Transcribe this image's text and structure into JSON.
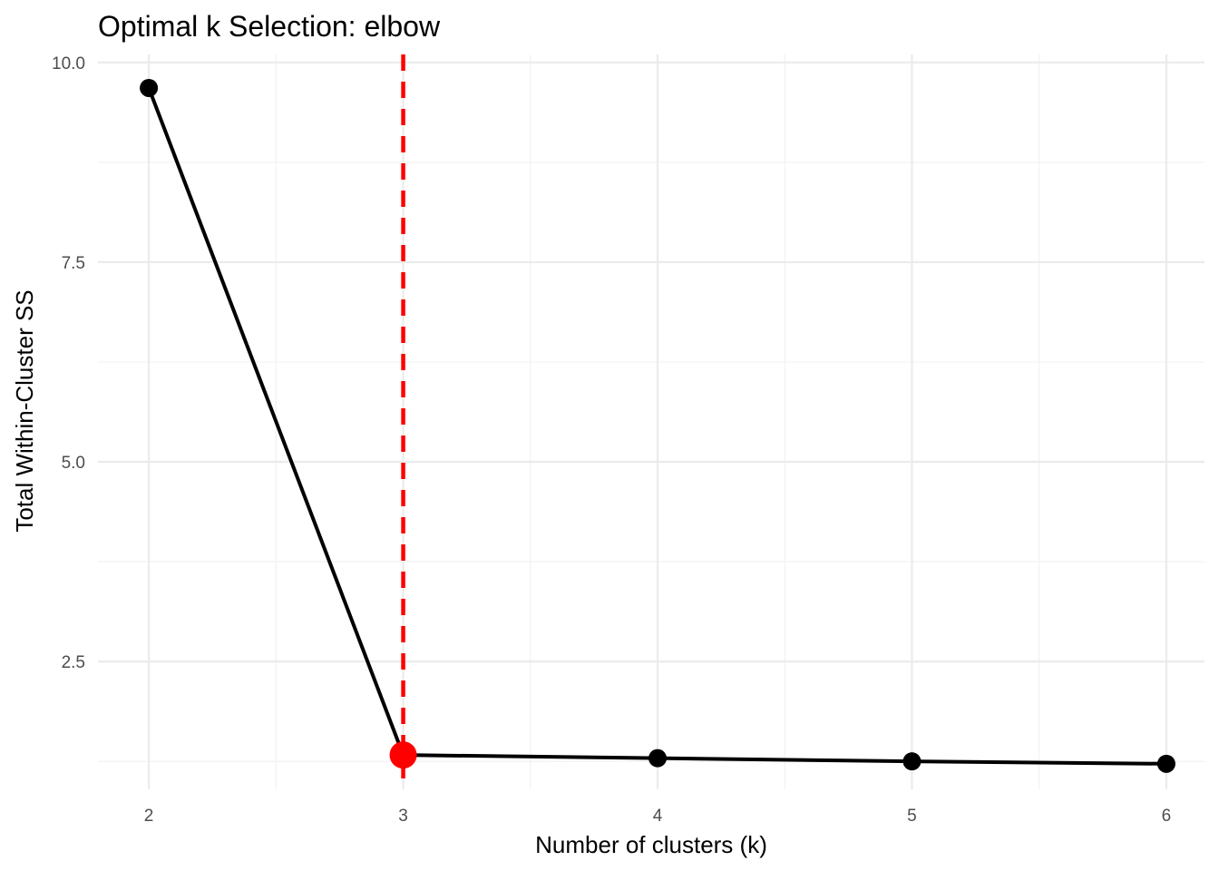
{
  "chart_data": {
    "type": "line",
    "title": "Optimal k Selection: elbow",
    "xlabel": "Number of clusters (k)",
    "ylabel": "Total Within-Cluster SS",
    "x": [
      2,
      3,
      4,
      5,
      6
    ],
    "x_ticks": [
      2,
      3,
      4,
      5,
      6
    ],
    "y_ticks": [
      2.5,
      5.0,
      7.5,
      10.0
    ],
    "y_tick_labels": [
      "2.5",
      "5.0",
      "7.5",
      "10.0"
    ],
    "xlim": [
      1.8,
      6.15
    ],
    "ylim": [
      0.9,
      10.1
    ],
    "series": [
      {
        "values": [
          9.68,
          1.33,
          1.29,
          1.25,
          1.22
        ],
        "color": "#000000"
      }
    ],
    "highlight": {
      "x": 3,
      "y": 1.33,
      "color": "#ff0000"
    },
    "vline": {
      "x": 3,
      "style": "dashed",
      "color": "#ff0000"
    },
    "grid": true,
    "legend": "none"
  }
}
